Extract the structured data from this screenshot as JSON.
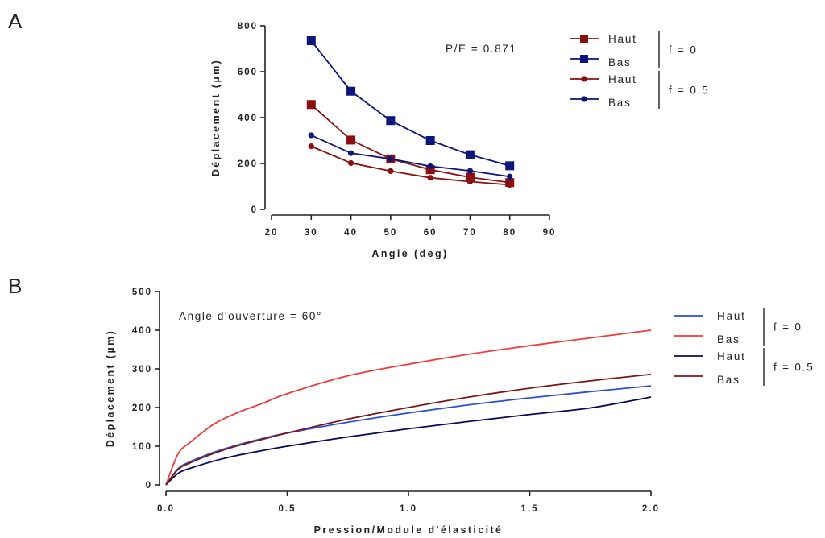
{
  "chart_data": [
    {
      "panel": "A",
      "type": "line",
      "annotation": "P/E = 0.871",
      "xlabel": "Angle (deg)",
      "ylabel": "Déplacement (µm)",
      "xlim": [
        20,
        90
      ],
      "ylim": [
        0,
        800
      ],
      "xticks": [
        20,
        30,
        40,
        50,
        60,
        70,
        80,
        90
      ],
      "yticks": [
        0,
        200,
        400,
        600,
        800
      ],
      "x": [
        30,
        40,
        50,
        60,
        70,
        80
      ],
      "grid": false,
      "legend_position": "right",
      "series": [
        {
          "name": "Haut",
          "group": "f = 0",
          "marker": "square",
          "color": "#8b0f0f",
          "values": [
            457,
            302,
            220,
            173,
            140,
            117
          ]
        },
        {
          "name": "Bas",
          "group": "f = 0",
          "marker": "square",
          "color": "#0c157a",
          "values": [
            735,
            515,
            387,
            300,
            238,
            190
          ]
        },
        {
          "name": "Haut",
          "group": "f = 0.5",
          "marker": "circle",
          "color": "#8b0f0f",
          "values": [
            275,
            202,
            167,
            138,
            121,
            107
          ]
        },
        {
          "name": "Bas",
          "group": "f = 0.5",
          "marker": "circle",
          "color": "#0c157a",
          "values": [
            323,
            245,
            220,
            188,
            168,
            143
          ]
        }
      ],
      "legend_groups": [
        "f = 0",
        "f = 0.5"
      ]
    },
    {
      "panel": "B",
      "type": "line",
      "annotation": "Angle d'ouverture = 60°",
      "xlabel": "Pression/Module d'élasticité",
      "ylabel": "Déplacement (µm)",
      "xlim": [
        0,
        2.0
      ],
      "ylim": [
        0,
        500
      ],
      "xticks": [
        "0.0",
        "0.5",
        "1.0",
        "1.5",
        "2.0"
      ],
      "yticks": [
        0,
        100,
        200,
        300,
        400,
        500
      ],
      "x": [
        0,
        0.05,
        0.1,
        0.2,
        0.3,
        0.4,
        0.5,
        0.75,
        1.0,
        1.25,
        1.5,
        1.75,
        2.0
      ],
      "grid": false,
      "legend_position": "right",
      "series": [
        {
          "name": "Haut",
          "group": "f = 0",
          "color": "#2a50d8",
          "values": [
            0,
            42,
            60,
            85,
            104,
            120,
            134,
            162,
            186,
            207,
            225,
            241,
            256
          ]
        },
        {
          "name": "Bas",
          "group": "f = 0",
          "color": "#f03a3a",
          "values": [
            0,
            80,
            110,
            158,
            188,
            211,
            236,
            282,
            312,
            338,
            360,
            380,
            400
          ]
        },
        {
          "name": "Haut",
          "group": "f = 0.5",
          "color": "#0a0a5a",
          "values": [
            0,
            30,
            43,
            62,
            77,
            89,
            100,
            124,
            145,
            164,
            182,
            199,
            227
          ]
        },
        {
          "name": "Bas",
          "group": "f = 0.5",
          "color": "#7a1818",
          "values": [
            0,
            40,
            57,
            82,
            102,
            118,
            134,
            170,
            200,
            227,
            250,
            269,
            286
          ]
        }
      ],
      "legend_groups": [
        "f = 0",
        "f = 0.5"
      ]
    }
  ]
}
